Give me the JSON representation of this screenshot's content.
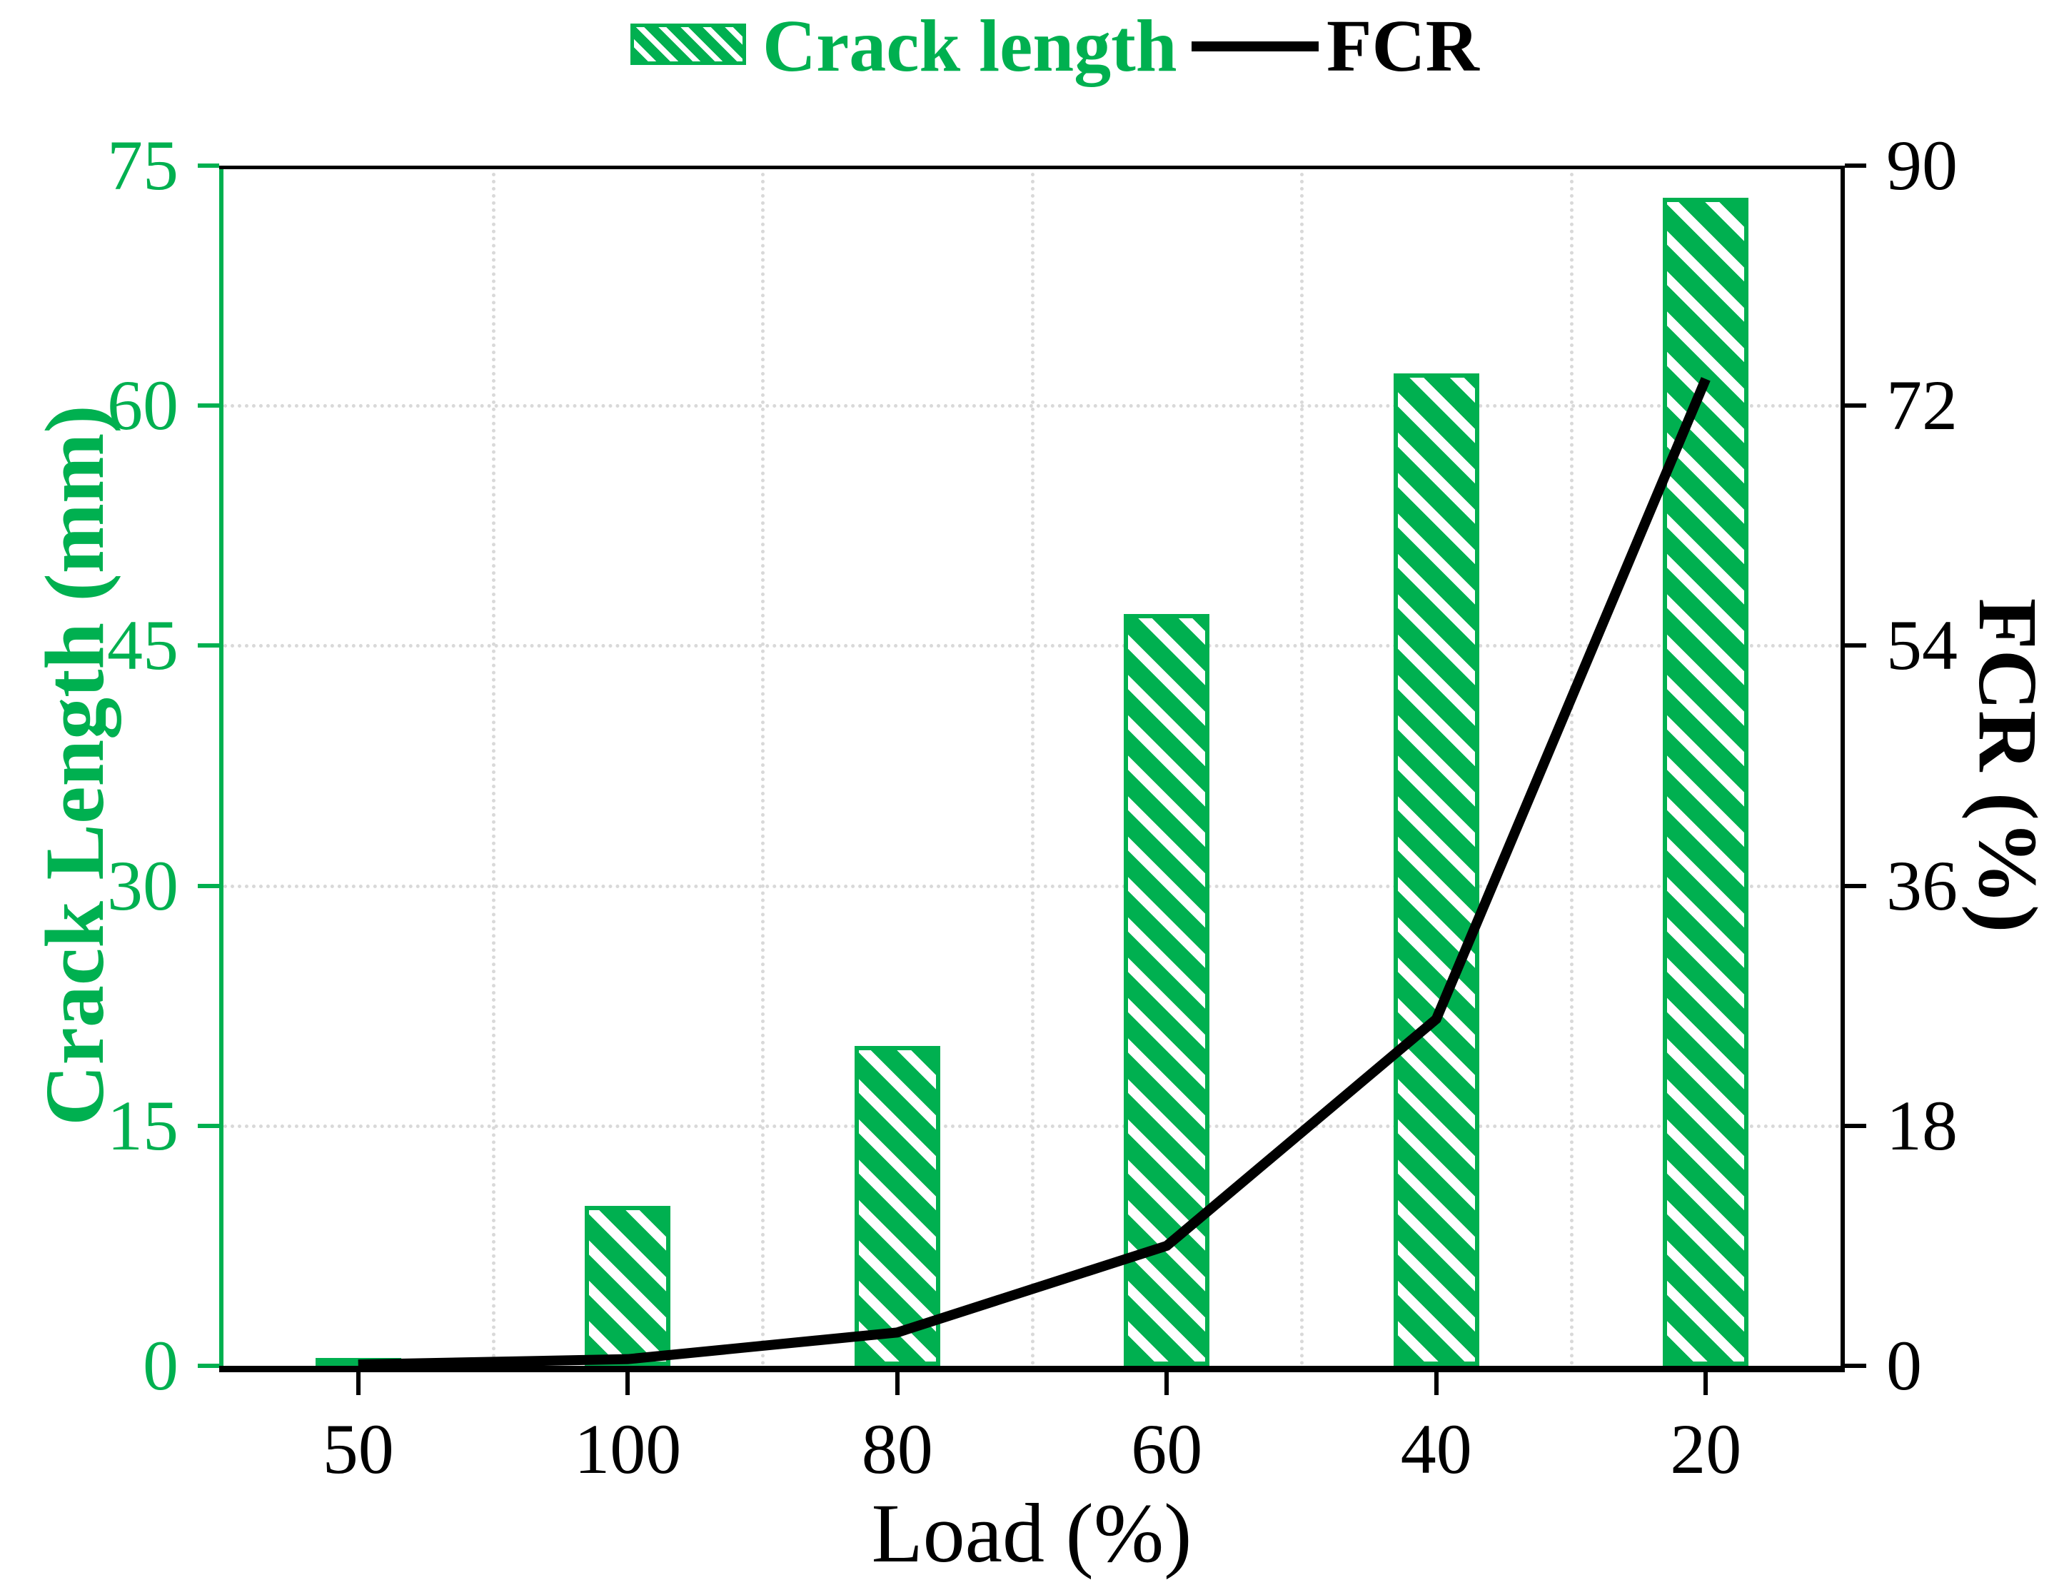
{
  "chart_data": {
    "type": "combo",
    "categories": [
      "50",
      "100",
      "80",
      "60",
      "40",
      "20"
    ],
    "series": [
      {
        "name": "Crack length",
        "type": "bar",
        "axis": "left",
        "unit": "mm",
        "values": [
          0.5,
          10,
          20,
          47,
          62,
          73
        ],
        "color": "#00B050",
        "fill": "white",
        "hatch": "diagonal-stripes"
      },
      {
        "name": "FCR",
        "type": "line",
        "axis": "right",
        "unit": "%",
        "values": [
          0.1,
          0.5,
          2.5,
          9,
          26,
          74
        ],
        "color": "#000000"
      }
    ],
    "x_axis": {
      "label": "Load (%)",
      "tick_labels": [
        "50",
        "100",
        "80",
        "60",
        "40",
        "20"
      ]
    },
    "y_axis_left": {
      "label": "Crack Length (mm)",
      "range": [
        0,
        75
      ],
      "ticks": [
        0,
        15,
        30,
        45,
        60,
        75
      ],
      "color": "#00B050"
    },
    "y_axis_right": {
      "label": "FCR (%)",
      "range": [
        0,
        90
      ],
      "ticks": [
        0,
        18,
        36,
        54,
        72,
        90
      ],
      "color": "#000000"
    },
    "legend": {
      "position": "top-center",
      "entries": [
        {
          "label": "Crack length",
          "swatch": "hatched-box",
          "color": "#00B050"
        },
        {
          "label": "FCR",
          "swatch": "line",
          "color": "#000000"
        }
      ]
    },
    "grid": {
      "horizontal": "dotted at left-axis ticks 15,30,45,60",
      "vertical": "dotted at category boundaries",
      "color": "#D9D9D9"
    }
  }
}
